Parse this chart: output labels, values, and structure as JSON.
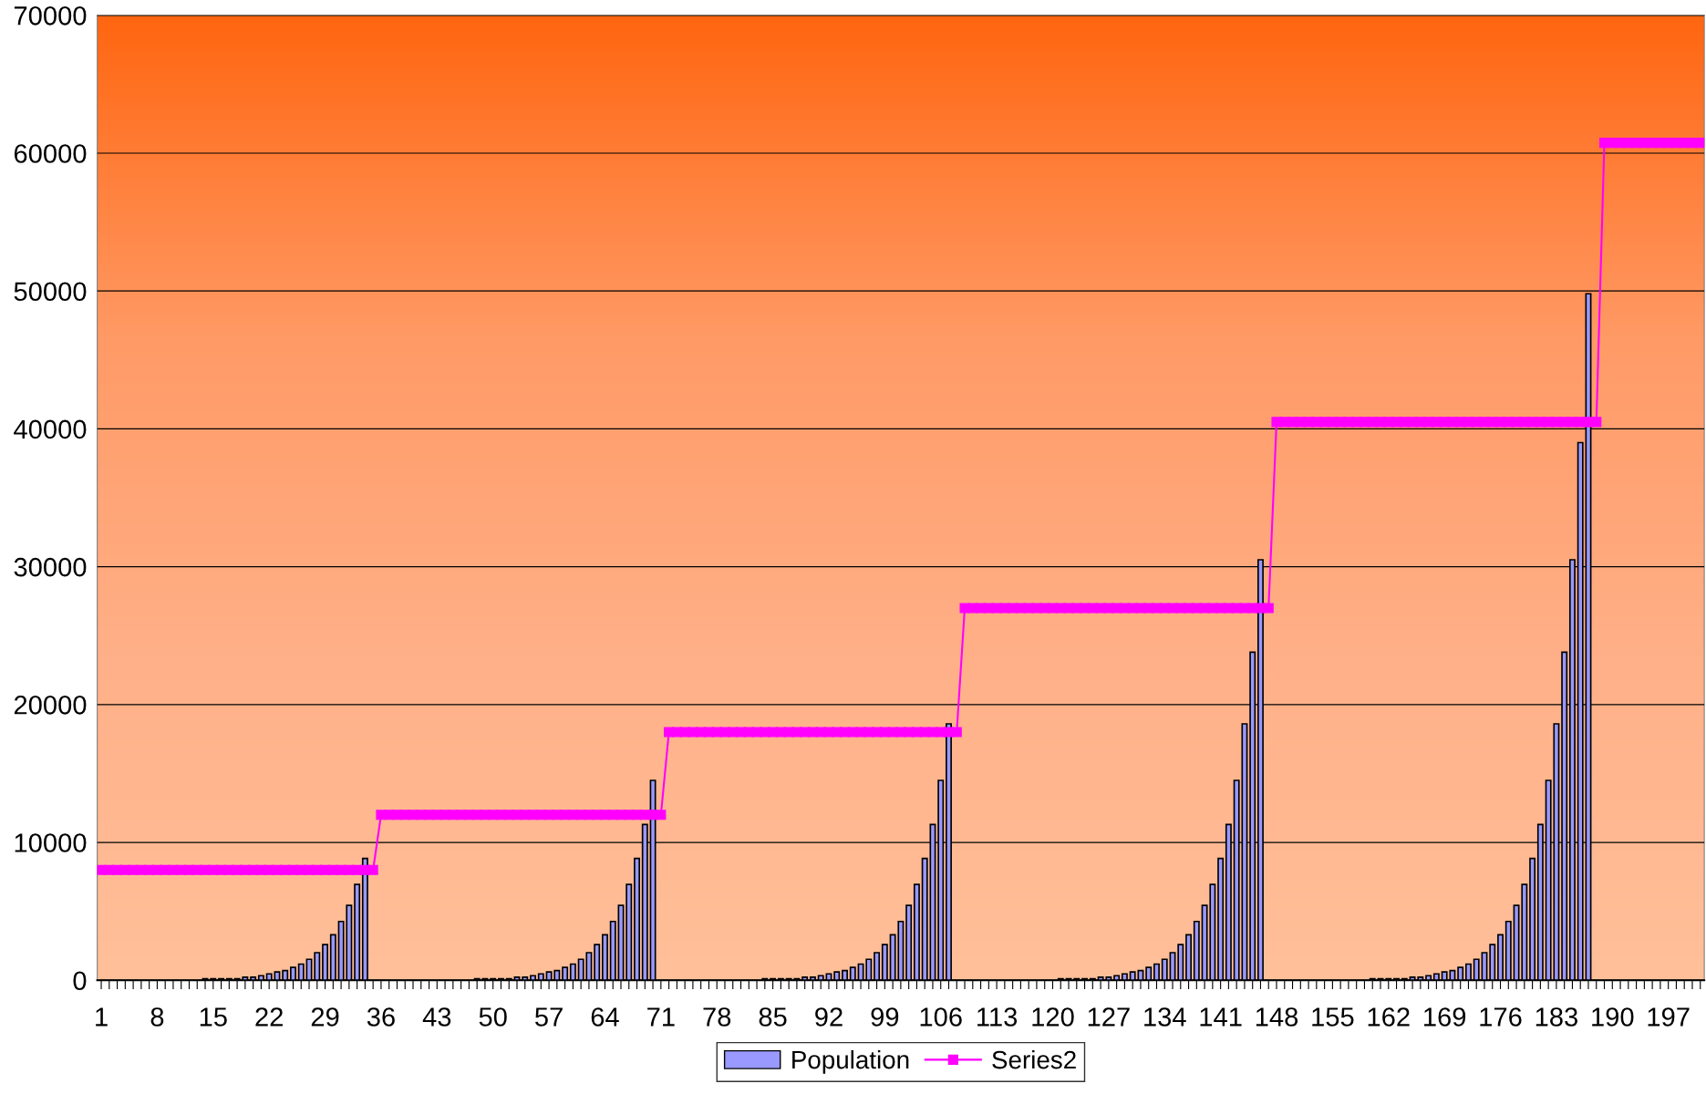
{
  "chart_data": {
    "type": "bar",
    "categories": [
      "1",
      null,
      null,
      null,
      null,
      null,
      null,
      "8",
      null,
      null,
      null,
      null,
      null,
      null,
      "15",
      null,
      null,
      null,
      null,
      null,
      null,
      "22",
      null,
      null,
      null,
      null,
      null,
      null,
      "29",
      null,
      null,
      null,
      null,
      null,
      null,
      "36",
      null,
      null,
      null,
      null,
      null,
      null,
      "43",
      null,
      null,
      null,
      null,
      null,
      null,
      "50",
      null,
      null,
      null,
      null,
      null,
      null,
      "57",
      null,
      null,
      null,
      null,
      null,
      null,
      "64",
      null,
      null,
      null,
      null,
      null,
      null,
      "71",
      null,
      null,
      null,
      null,
      null,
      null,
      "78",
      null,
      null,
      null,
      null,
      null,
      null,
      "85",
      null,
      null,
      null,
      null,
      null,
      null,
      "92",
      null,
      null,
      null,
      null,
      null,
      null,
      "99",
      null,
      null,
      null,
      null,
      null,
      null,
      "106",
      null,
      null,
      null,
      null,
      null,
      null,
      "113",
      null,
      null,
      null,
      null,
      null,
      null,
      "120",
      null,
      null,
      null,
      null,
      null,
      null,
      "127",
      null,
      null,
      null,
      null,
      null,
      null,
      "134",
      null,
      null,
      null,
      null,
      null,
      null,
      "141",
      null,
      null,
      null,
      null,
      null,
      null,
      "148",
      null,
      null,
      null,
      null,
      null,
      null,
      "155",
      null,
      null,
      null,
      null,
      null,
      null,
      "162",
      null,
      null,
      null,
      null,
      null,
      null,
      "169",
      null,
      null,
      null,
      null,
      null,
      null,
      "176",
      null,
      null,
      null,
      null,
      null,
      null,
      "183",
      null,
      null,
      null,
      null,
      null,
      null,
      "190",
      null,
      null,
      null,
      null,
      null,
      null,
      "197",
      null,
      null,
      null,
      null
    ],
    "series": [
      {
        "name": "Population",
        "type": "bar",
        "color": "#9999ff",
        "values": [
          0,
          0,
          0,
          0,
          0,
          0,
          0,
          0,
          0,
          0,
          0,
          0,
          0,
          100,
          100,
          100,
          100,
          100,
          220,
          220,
          330,
          460,
          600,
          700,
          930,
          1170,
          1520,
          2000,
          2580,
          3290,
          4260,
          5430,
          6950,
          8830,
          0,
          0,
          0,
          0,
          0,
          0,
          0,
          0,
          0,
          0,
          0,
          0,
          0,
          100,
          100,
          100,
          100,
          100,
          220,
          220,
          330,
          460,
          600,
          700,
          930,
          1170,
          1520,
          2000,
          2580,
          3290,
          4260,
          5430,
          6950,
          8830,
          11300,
          14500,
          0,
          0,
          0,
          0,
          0,
          0,
          0,
          0,
          0,
          0,
          0,
          0,
          0,
          100,
          100,
          100,
          100,
          100,
          220,
          220,
          330,
          460,
          600,
          700,
          930,
          1170,
          1520,
          2000,
          2580,
          3290,
          4260,
          5430,
          6950,
          8830,
          11300,
          14500,
          18600,
          0,
          0,
          0,
          0,
          0,
          0,
          0,
          0,
          0,
          0,
          0,
          0,
          0,
          100,
          100,
          100,
          100,
          100,
          220,
          220,
          330,
          460,
          600,
          700,
          930,
          1170,
          1520,
          2000,
          2580,
          3290,
          4260,
          5430,
          6950,
          8830,
          11300,
          14500,
          18600,
          23800,
          30500,
          0,
          0,
          0,
          0,
          0,
          0,
          0,
          0,
          0,
          0,
          0,
          0,
          0,
          100,
          100,
          100,
          100,
          100,
          220,
          220,
          330,
          460,
          600,
          700,
          930,
          1170,
          1520,
          2000,
          2580,
          3290,
          4260,
          5430,
          6950,
          8830,
          11300,
          14500,
          18600,
          23800,
          30500,
          39000,
          49800,
          0,
          0,
          0,
          0,
          0,
          0,
          0,
          0,
          0,
          0,
          0,
          0,
          0,
          0
        ]
      },
      {
        "name": "Series2",
        "type": "line",
        "color": "#ff00ff",
        "marker": "square",
        "values": [
          8000,
          8000,
          8000,
          8000,
          8000,
          8000,
          8000,
          8000,
          8000,
          8000,
          8000,
          8000,
          8000,
          8000,
          8000,
          8000,
          8000,
          8000,
          8000,
          8000,
          8000,
          8000,
          8000,
          8000,
          8000,
          8000,
          8000,
          8000,
          8000,
          8000,
          8000,
          8000,
          8000,
          8000,
          8000,
          12000,
          12000,
          12000,
          12000,
          12000,
          12000,
          12000,
          12000,
          12000,
          12000,
          12000,
          12000,
          12000,
          12000,
          12000,
          12000,
          12000,
          12000,
          12000,
          12000,
          12000,
          12000,
          12000,
          12000,
          12000,
          12000,
          12000,
          12000,
          12000,
          12000,
          12000,
          12000,
          12000,
          12000,
          12000,
          12000,
          18000,
          18000,
          18000,
          18000,
          18000,
          18000,
          18000,
          18000,
          18000,
          18000,
          18000,
          18000,
          18000,
          18000,
          18000,
          18000,
          18000,
          18000,
          18000,
          18000,
          18000,
          18000,
          18000,
          18000,
          18000,
          18000,
          18000,
          18000,
          18000,
          18000,
          18000,
          18000,
          18000,
          18000,
          18000,
          18000,
          18000,
          27000,
          27000,
          27000,
          27000,
          27000,
          27000,
          27000,
          27000,
          27000,
          27000,
          27000,
          27000,
          27000,
          27000,
          27000,
          27000,
          27000,
          27000,
          27000,
          27000,
          27000,
          27000,
          27000,
          27000,
          27000,
          27000,
          27000,
          27000,
          27000,
          27000,
          27000,
          27000,
          27000,
          27000,
          27000,
          27000,
          27000,
          27000,
          27000,
          40500,
          40500,
          40500,
          40500,
          40500,
          40500,
          40500,
          40500,
          40500,
          40500,
          40500,
          40500,
          40500,
          40500,
          40500,
          40500,
          40500,
          40500,
          40500,
          40500,
          40500,
          40500,
          40500,
          40500,
          40500,
          40500,
          40500,
          40500,
          40500,
          40500,
          40500,
          40500,
          40500,
          40500,
          40500,
          40500,
          40500,
          40500,
          40500,
          40500,
          40500,
          60750,
          60750,
          60750,
          60750,
          60750,
          60750,
          60750,
          60750,
          60750,
          60750,
          60750,
          60750,
          60750
        ]
      }
    ],
    "ylim": [
      0,
      70000
    ],
    "yticks": [
      0,
      10000,
      20000,
      30000,
      40000,
      50000,
      60000,
      70000
    ],
    "grid": "y",
    "legend": "bottom"
  }
}
